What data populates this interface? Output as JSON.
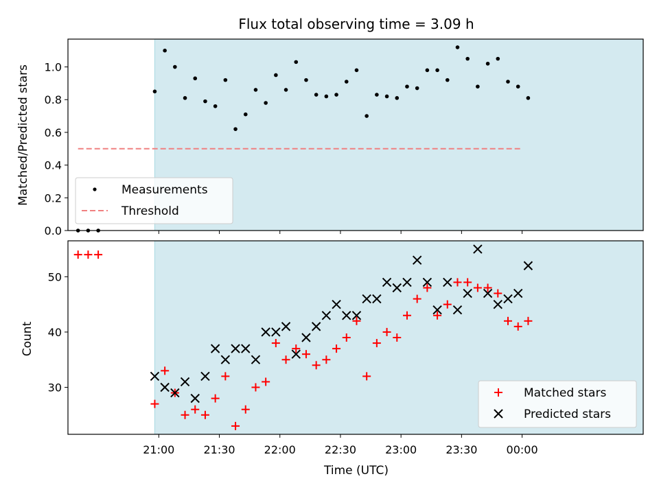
{
  "chart_data": {
    "type": "scatter",
    "title": "Flux total observing time = 3.09 h",
    "xlabel": "Time (UTC)",
    "xlim": [
      "20:15",
      "01:00"
    ],
    "xticks": [
      "21:00",
      "21:30",
      "22:00",
      "22:30",
      "23:00",
      "23:30",
      "00:00"
    ],
    "shaded_range": [
      "20:58",
      "01:03"
    ],
    "colors": {
      "shade": "#d4eaf0",
      "shade_edge": "#a8d8e2",
      "measurements": "#000000",
      "threshold": "#f08080",
      "matched": "#ff0000",
      "predicted": "#000000"
    },
    "top": {
      "ylabel": "Matched/Predicted stars",
      "ylim": [
        0,
        1.17
      ],
      "yticks": [
        "0.0",
        "0.2",
        "0.4",
        "0.6",
        "0.8",
        "1.0"
      ],
      "threshold": 0.5,
      "threshold_x": [
        "20:20",
        "00:00"
      ],
      "legend": {
        "placement": "lower-left",
        "items": [
          "Measurements",
          "Threshold"
        ]
      },
      "measurements": [
        [
          "20:20",
          0
        ],
        [
          "20:25",
          0
        ],
        [
          "20:30",
          0
        ],
        [
          "20:58",
          0.85
        ],
        [
          "21:03",
          1.1
        ],
        [
          "21:08",
          1.0
        ],
        [
          "21:13",
          0.81
        ],
        [
          "21:18",
          0.93
        ],
        [
          "21:23",
          0.79
        ],
        [
          "21:28",
          0.76
        ],
        [
          "21:33",
          0.92
        ],
        [
          "21:38",
          0.62
        ],
        [
          "21:43",
          0.71
        ],
        [
          "21:48",
          0.86
        ],
        [
          "21:53",
          0.78
        ],
        [
          "21:58",
          0.95
        ],
        [
          "22:03",
          0.86
        ],
        [
          "22:08",
          1.03
        ],
        [
          "22:13",
          0.92
        ],
        [
          "22:18",
          0.83
        ],
        [
          "22:23",
          0.82
        ],
        [
          "22:28",
          0.83
        ],
        [
          "22:33",
          0.91
        ],
        [
          "22:38",
          0.98
        ],
        [
          "22:43",
          0.7
        ],
        [
          "22:48",
          0.83
        ],
        [
          "22:53",
          0.82
        ],
        [
          "22:58",
          0.81
        ],
        [
          "23:03",
          0.88
        ],
        [
          "23:08",
          0.87
        ],
        [
          "23:13",
          0.98
        ],
        [
          "23:18",
          0.98
        ],
        [
          "23:23",
          0.92
        ],
        [
          "23:28",
          1.12
        ],
        [
          "23:33",
          1.05
        ],
        [
          "23:38",
          0.88
        ],
        [
          "23:43",
          1.02
        ],
        [
          "23:48",
          1.05
        ],
        [
          "23:53",
          0.91
        ],
        [
          "23:58",
          0.88
        ],
        [
          "00:03",
          0.81
        ]
      ]
    },
    "bottom": {
      "ylabel": "Count",
      "ylim": [
        21.5,
        56.5
      ],
      "yticks": [
        "30",
        "40",
        "50"
      ],
      "legend": {
        "placement": "lower-right",
        "items": [
          "Matched stars",
          "Predicted stars"
        ]
      },
      "series": [
        {
          "name": "Matched stars",
          "marker": "plus",
          "points": [
            [
              "20:20",
              54
            ],
            [
              "20:25",
              54
            ],
            [
              "20:30",
              54
            ],
            [
              "20:58",
              27
            ],
            [
              "21:03",
              33
            ],
            [
              "21:08",
              29
            ],
            [
              "21:13",
              25
            ],
            [
              "21:18",
              26
            ],
            [
              "21:23",
              25
            ],
            [
              "21:28",
              28
            ],
            [
              "21:33",
              32
            ],
            [
              "21:38",
              23
            ],
            [
              "21:43",
              26
            ],
            [
              "21:48",
              30
            ],
            [
              "21:53",
              31
            ],
            [
              "21:58",
              38
            ],
            [
              "22:03",
              35
            ],
            [
              "22:08",
              37
            ],
            [
              "22:13",
              36
            ],
            [
              "22:18",
              34
            ],
            [
              "22:23",
              35
            ],
            [
              "22:28",
              37
            ],
            [
              "22:33",
              39
            ],
            [
              "22:38",
              42
            ],
            [
              "22:43",
              32
            ],
            [
              "22:48",
              38
            ],
            [
              "22:53",
              40
            ],
            [
              "22:58",
              39
            ],
            [
              "23:03",
              43
            ],
            [
              "23:08",
              46
            ],
            [
              "23:13",
              48
            ],
            [
              "23:18",
              43
            ],
            [
              "23:23",
              45
            ],
            [
              "23:28",
              49
            ],
            [
              "23:33",
              49
            ],
            [
              "23:38",
              48
            ],
            [
              "23:43",
              48
            ],
            [
              "23:48",
              47
            ],
            [
              "23:53",
              42
            ],
            [
              "23:58",
              41
            ],
            [
              "00:03",
              42
            ]
          ]
        },
        {
          "name": "Predicted stars",
          "marker": "x",
          "points": [
            [
              "20:58",
              32
            ],
            [
              "21:03",
              30
            ],
            [
              "21:08",
              29
            ],
            [
              "21:13",
              31
            ],
            [
              "21:18",
              28
            ],
            [
              "21:23",
              32
            ],
            [
              "21:28",
              37
            ],
            [
              "21:33",
              35
            ],
            [
              "21:38",
              37
            ],
            [
              "21:43",
              37
            ],
            [
              "21:48",
              35
            ],
            [
              "21:53",
              40
            ],
            [
              "21:58",
              40
            ],
            [
              "22:03",
              41
            ],
            [
              "22:08",
              36
            ],
            [
              "22:13",
              39
            ],
            [
              "22:18",
              41
            ],
            [
              "22:23",
              43
            ],
            [
              "22:28",
              45
            ],
            [
              "22:33",
              43
            ],
            [
              "22:38",
              43
            ],
            [
              "22:43",
              46
            ],
            [
              "22:48",
              46
            ],
            [
              "22:53",
              49
            ],
            [
              "22:58",
              48
            ],
            [
              "23:03",
              49
            ],
            [
              "23:08",
              53
            ],
            [
              "23:13",
              49
            ],
            [
              "23:18",
              44
            ],
            [
              "23:23",
              49
            ],
            [
              "23:28",
              44
            ],
            [
              "23:33",
              47
            ],
            [
              "23:38",
              55
            ],
            [
              "23:43",
              47
            ],
            [
              "23:48",
              45
            ],
            [
              "23:53",
              46
            ],
            [
              "23:58",
              47
            ],
            [
              "00:03",
              52
            ]
          ]
        }
      ]
    }
  }
}
